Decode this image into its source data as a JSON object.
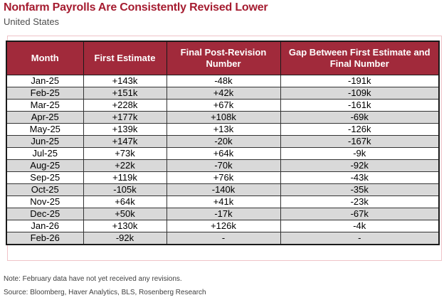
{
  "header": {
    "title": "Nonfarm Payrolls Are Consistently Revised Lower",
    "subtitle": "United States"
  },
  "table": {
    "columns": [
      "Month",
      "First Estimate",
      "Final Post-Revision Number",
      "Gap Between First Estimate and Final Number"
    ],
    "rows": [
      [
        "Jan-25",
        "+143k",
        "-48k",
        "-191k"
      ],
      [
        "Feb-25",
        "+151k",
        "+42k",
        "-109k"
      ],
      [
        "Mar-25",
        "+228k",
        "+67k",
        "-161k"
      ],
      [
        "Apr-25",
        "+177k",
        "+108k",
        "-69k"
      ],
      [
        "May-25",
        "+139k",
        "+13k",
        "-126k"
      ],
      [
        "Jun-25",
        "+147k",
        "-20k",
        "-167k"
      ],
      [
        "Jul-25",
        "+73k",
        "+64k",
        "-9k"
      ],
      [
        "Aug-25",
        "+22k",
        "-70k",
        "-92k"
      ],
      [
        "Sep-25",
        "+119k",
        "+76k",
        "-43k"
      ],
      [
        "Oct-25",
        "-105k",
        "-140k",
        "-35k"
      ],
      [
        "Nov-25",
        "+64k",
        "+41k",
        "-23k"
      ],
      [
        "Dec-25",
        "+50k",
        "-17k",
        "-67k"
      ],
      [
        "Jan-26",
        "+130k",
        "+126k",
        "-4k"
      ],
      [
        "Feb-26",
        "-92k",
        "-",
        "-"
      ]
    ]
  },
  "footer": {
    "note": "Note: February data have not yet received any revisions.",
    "source": "Source: Bloomberg, Haver Analytics, BLS, Rosenberg Research"
  },
  "colors": {
    "title_red": "#A51C30",
    "header_bg": "#A12A3B",
    "row_alt_gray": "#D9D9D9",
    "frame_pink": "#EFC3C8"
  },
  "chart_data": {
    "type": "table",
    "title": "Nonfarm Payrolls Are Consistently Revised Lower",
    "subtitle": "United States",
    "columns": [
      "Month",
      "First Estimate",
      "Final Post-Revision Number",
      "Gap Between First Estimate and Final Number"
    ],
    "rows": [
      [
        "Jan-25",
        "+143k",
        "-48k",
        "-191k"
      ],
      [
        "Feb-25",
        "+151k",
        "+42k",
        "-109k"
      ],
      [
        "Mar-25",
        "+228k",
        "+67k",
        "-161k"
      ],
      [
        "Apr-25",
        "+177k",
        "+108k",
        "-69k"
      ],
      [
        "May-25",
        "+139k",
        "+13k",
        "-126k"
      ],
      [
        "Jun-25",
        "+147k",
        "-20k",
        "-167k"
      ],
      [
        "Jul-25",
        "+73k",
        "+64k",
        "-9k"
      ],
      [
        "Aug-25",
        "+22k",
        "-70k",
        "-92k"
      ],
      [
        "Sep-25",
        "+119k",
        "+76k",
        "-43k"
      ],
      [
        "Oct-25",
        "-105k",
        "-140k",
        "-35k"
      ],
      [
        "Nov-25",
        "+64k",
        "+41k",
        "-23k"
      ],
      [
        "Dec-25",
        "+50k",
        "-17k",
        "-67k"
      ],
      [
        "Jan-26",
        "+130k",
        "+126k",
        "-4k"
      ],
      [
        "Feb-26",
        "-92k",
        "-",
        "-"
      ]
    ],
    "note": "Note: February data have not yet received any revisions.",
    "source": "Source: Bloomberg, Haver Analytics, BLS, Rosenberg Research"
  }
}
